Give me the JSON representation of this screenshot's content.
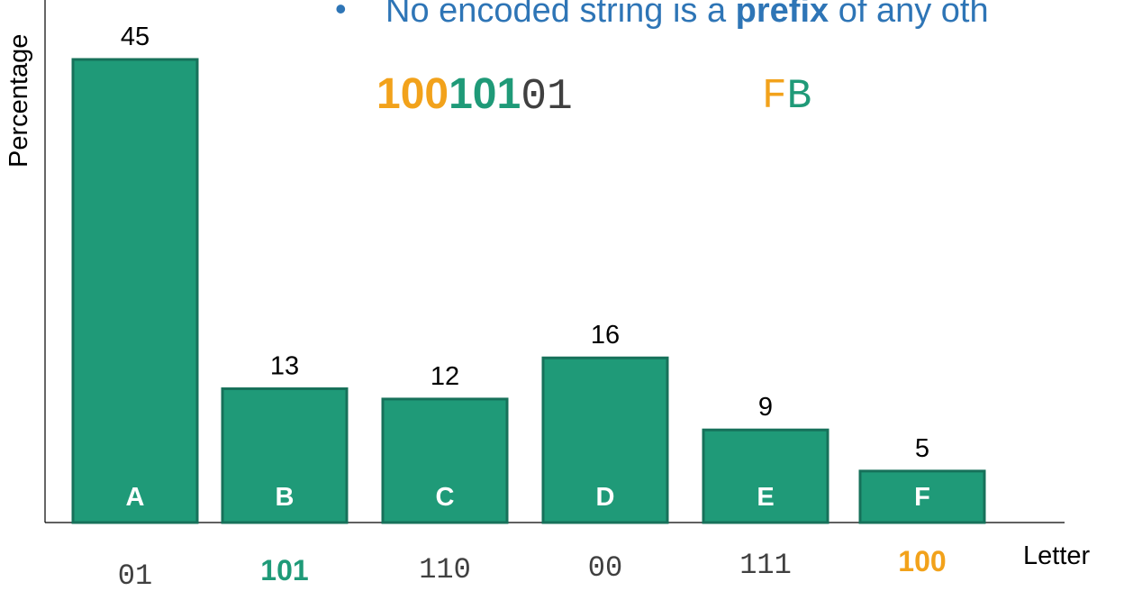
{
  "bullet": {
    "marker": "•",
    "text_before": "No encoded string is a ",
    "bold_word": "prefix",
    "text_after": " of any oth"
  },
  "example": {
    "part1": "100",
    "part2": "101",
    "part3": "01",
    "decoded_part1": "F",
    "decoded_part2": "B"
  },
  "colors": {
    "bar_fill": "#1f9a78",
    "bar_stroke": "#17715a",
    "accent_orange": "#f2a21b",
    "accent_green": "#1f9a78",
    "bullet_blue": "#2e75b6",
    "text": "#000000",
    "code_gray": "#404040"
  },
  "chart_data": {
    "type": "bar",
    "categories": [
      "A",
      "B",
      "C",
      "D",
      "E",
      "F"
    ],
    "values": [
      45,
      13,
      12,
      16,
      9,
      5
    ],
    "codes": [
      "01",
      "101",
      "110",
      "00",
      "111",
      "100"
    ],
    "code_highlight": [
      "none",
      "green",
      "none",
      "none",
      "none",
      "orange"
    ],
    "xlabel": "Letter",
    "ylabel": "Percentage",
    "ylim": [
      0,
      45
    ],
    "grid": false
  }
}
